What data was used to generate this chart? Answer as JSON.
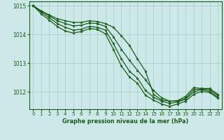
{
  "title": "Graphe pression niveau de la mer (hPa)",
  "bg_color": "#cce8e8",
  "line_color": "#1a5c1a",
  "grid_color": "#aacfcf",
  "ylim": [
    1011.4,
    1015.15
  ],
  "xlim": [
    -0.5,
    23.5
  ],
  "yticks": [
    1012,
    1013,
    1014,
    1015
  ],
  "xticks": [
    0,
    1,
    2,
    3,
    4,
    5,
    6,
    7,
    8,
    9,
    10,
    11,
    12,
    13,
    14,
    15,
    16,
    17,
    18,
    19,
    20,
    21,
    22,
    23
  ],
  "series": [
    [
      1015.0,
      1014.82,
      1014.68,
      1014.55,
      1014.48,
      1014.42,
      1014.42,
      1014.48,
      1014.45,
      1014.38,
      1014.25,
      1013.95,
      1013.62,
      1013.15,
      1012.72,
      1011.92,
      1011.72,
      1011.68,
      1011.7,
      1011.85,
      1012.15,
      1012.12,
      1012.12,
      1011.92
    ],
    [
      1015.0,
      1014.82,
      1014.65,
      1014.48,
      1014.38,
      1014.3,
      1014.32,
      1014.4,
      1014.38,
      1014.28,
      1013.92,
      1013.48,
      1013.1,
      1012.75,
      1012.42,
      1012.05,
      1011.8,
      1011.68,
      1011.68,
      1011.78,
      1012.08,
      1012.1,
      1012.08,
      1011.88
    ],
    [
      1015.0,
      1014.78,
      1014.58,
      1014.38,
      1014.25,
      1014.15,
      1014.18,
      1014.28,
      1014.25,
      1014.15,
      1013.68,
      1013.15,
      1012.72,
      1012.48,
      1012.05,
      1011.82,
      1011.68,
      1011.6,
      1011.65,
      1011.75,
      1012.0,
      1012.08,
      1012.02,
      1011.82
    ],
    [
      1015.0,
      1014.72,
      1014.5,
      1014.28,
      1014.12,
      1014.05,
      1014.1,
      1014.2,
      1014.18,
      1014.02,
      1013.48,
      1012.9,
      1012.52,
      1012.3,
      1011.88,
      1011.72,
      1011.58,
      1011.5,
      1011.58,
      1011.68,
      1011.92,
      1012.02,
      1011.98,
      1011.78
    ]
  ]
}
